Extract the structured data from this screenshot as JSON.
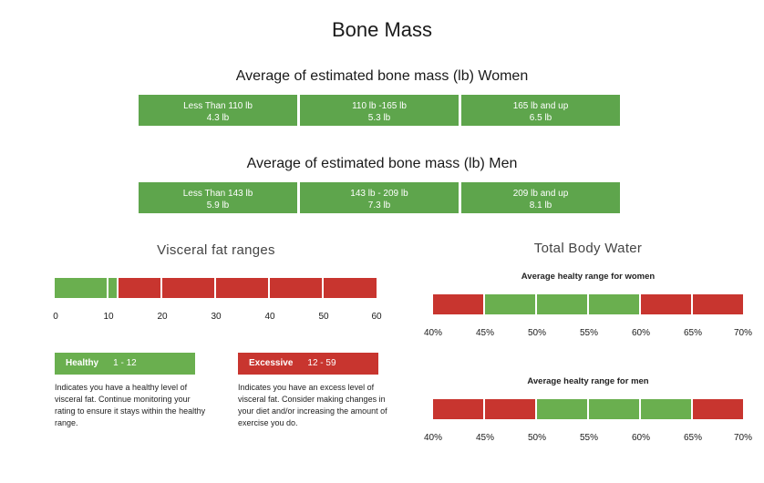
{
  "title": "Bone Mass",
  "women": {
    "heading": "Average of estimated bone mass (lb) Women",
    "cells": [
      {
        "range": "Less Than 110 lb",
        "value": "4.3 lb"
      },
      {
        "range": "110 lb -165 lb",
        "value": "5.3 lb"
      },
      {
        "range": "165 lb and up",
        "value": "6.5 lb"
      }
    ]
  },
  "men": {
    "heading": "Average of estimated bone mass (lb) Men",
    "cells": [
      {
        "range": "Less Than 143 lb",
        "value": "5.9 lb"
      },
      {
        "range": "143 lb - 209 lb",
        "value": "7.3 lb"
      },
      {
        "range": "209 lb and up",
        "value": "8.1 lb"
      }
    ]
  },
  "visceral": {
    "heading": "Visceral fat ranges",
    "ticks": [
      "0",
      "10",
      "20",
      "30",
      "40",
      "50",
      "60"
    ],
    "healthy": {
      "label": "Healthy",
      "range": "1 - 12",
      "desc": "Indicates you have a healthy level of visceral fat. Continue monitoring your rating to ensure it stays within the healthy range."
    },
    "excessive": {
      "label": "Excessive",
      "range": "12 - 59",
      "desc": "Indicates you have an excess level of visceral fat. Consider making changes in your diet and/or increasing the amount of exercise you do."
    }
  },
  "water": {
    "heading": "Total Body Water",
    "women_title": "Average healty range for women",
    "men_title": "Average healty range for men",
    "ticks": [
      "40%",
      "45%",
      "50%",
      "55%",
      "60%",
      "65%",
      "70%"
    ]
  },
  "colors": {
    "green": "#6aaf4f",
    "red": "#c8352f"
  }
}
